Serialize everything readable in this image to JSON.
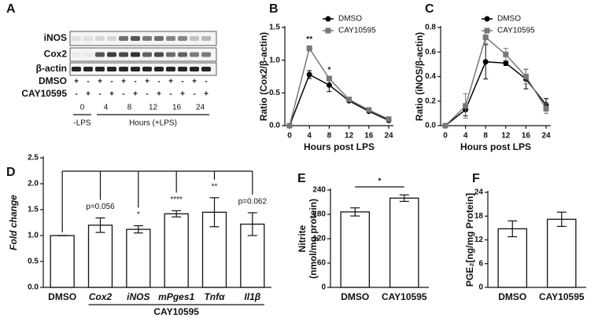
{
  "blot": {
    "panel": "A",
    "rows": [
      "iNOS",
      "Cox2",
      "β-actin"
    ],
    "treatments": [
      {
        "name": "DMSO",
        "marks": [
          "+",
          "-",
          "+",
          "-",
          "+",
          "-",
          "+",
          "-",
          "+",
          "-",
          "+",
          "-"
        ]
      },
      {
        "name": "CAY10595",
        "marks": [
          "-",
          "+",
          "-",
          "+",
          "-",
          "+",
          "-",
          "+",
          "-",
          "+",
          "-",
          "+"
        ]
      }
    ],
    "times": [
      "0",
      "4",
      "8",
      "12",
      "16",
      "24"
    ],
    "conditions": [
      "-LPS",
      "Hours (+LPS)"
    ]
  },
  "chart_data": [
    {
      "type": "line",
      "panel": "B",
      "ylabel": "Ratio (Cox2/β-actin)",
      "xlabel": "Hours post LPS",
      "categories": [
        "0",
        "4",
        "8",
        "12",
        "16",
        "24"
      ],
      "series": [
        {
          "name": "DMSO",
          "color": "#000000",
          "marker": "circle",
          "values": [
            0,
            0.78,
            0.62,
            0.38,
            0.22,
            0.08
          ],
          "errors": [
            0,
            0.06,
            0.1,
            0.02,
            0.02,
            0.02
          ]
        },
        {
          "name": "CAY10595",
          "color": "#777777",
          "marker": "square",
          "values": [
            0,
            1.18,
            0.72,
            0.4,
            0.24,
            0.1
          ],
          "errors": [
            0,
            0.04,
            0.03,
            0.02,
            0.02,
            0.02
          ]
        }
      ],
      "ylim": [
        0,
        1.5
      ],
      "yticks": [
        {
          "value": 0,
          "label": "0.0"
        },
        {
          "value": 0.5,
          "label": "0.5"
        },
        {
          "value": 1,
          "label": "1.0"
        },
        {
          "value": 1.5,
          "label": "1.5"
        }
      ],
      "annotations": [
        {
          "x": "4",
          "text": "**"
        },
        {
          "x": "8",
          "text": "*"
        }
      ]
    },
    {
      "type": "line",
      "panel": "C",
      "ylabel": "Ratio (iNOS/β-actin)",
      "xlabel": "Hours post LPS",
      "categories": [
        "0",
        "4",
        "8",
        "12",
        "16",
        "24"
      ],
      "series": [
        {
          "name": "DMSO",
          "color": "#000000",
          "marker": "circle",
          "values": [
            0,
            0.13,
            0.52,
            0.51,
            0.38,
            0.17
          ],
          "errors": [
            0,
            0.05,
            0.14,
            0.02,
            0.08,
            0.05
          ]
        },
        {
          "name": "CAY10595",
          "color": "#777777",
          "marker": "square",
          "values": [
            0,
            0.16,
            0.72,
            0.58,
            0.4,
            0.14
          ],
          "errors": [
            0,
            0.1,
            0.05,
            0.05,
            0.06,
            0.04
          ]
        }
      ],
      "ylim": [
        0,
        0.8
      ],
      "yticks": [
        {
          "value": 0,
          "label": "0.0"
        },
        {
          "value": 0.2,
          "label": "0.2"
        },
        {
          "value": 0.4,
          "label": "0.4"
        },
        {
          "value": 0.6,
          "label": "0.6"
        },
        {
          "value": 0.8,
          "label": "0.8"
        }
      ]
    },
    {
      "type": "bar",
      "panel": "D",
      "ylabel": "Fold change",
      "categories": [
        "DMSO",
        "Cox2",
        "iNOS",
        "mPges1",
        "Tnfα",
        "Il1β"
      ],
      "values": [
        1.0,
        1.2,
        1.12,
        1.42,
        1.45,
        1.22
      ],
      "errors": [
        0,
        0.14,
        0.07,
        0.06,
        0.28,
        0.22
      ],
      "color": "#ffffff",
      "group_label": "CAY10595",
      "ylim": [
        0,
        2.5
      ],
      "yticks": [
        {
          "value": 0,
          "label": "0.0"
        },
        {
          "value": 0.5,
          "label": "0.5"
        },
        {
          "value": 1,
          "label": "1.0"
        },
        {
          "value": 1.5,
          "label": "1.5"
        },
        {
          "value": 2,
          "label": "2.0"
        },
        {
          "value": 2.5,
          "label": "2.5"
        }
      ],
      "annotations": [
        {
          "x": "Cox2",
          "text": "p=0.056"
        },
        {
          "x": "iNOS",
          "text": "*"
        },
        {
          "x": "mPges1",
          "text": "****"
        },
        {
          "x": "Tnfα",
          "text": "**"
        },
        {
          "x": "Il1β",
          "text": "p=0.062"
        }
      ]
    },
    {
      "type": "bar",
      "panel": "E",
      "ylabel": [
        "Nitrite",
        "(nmol/mg protein)"
      ],
      "categories": [
        "DMSO",
        "CAY10595"
      ],
      "values": [
        186,
        220
      ],
      "errors": [
        10,
        8
      ],
      "color": "#ffffff",
      "ylim": [
        0,
        240
      ],
      "yticks": [
        0,
        60,
        120,
        180,
        240
      ],
      "annotations": [
        {
          "text": "*"
        }
      ]
    },
    {
      "type": "bar",
      "panel": "F",
      "ylabel": "PGE₂[ng/mg Protein]",
      "categories": [
        "DMSO",
        "CAY10595"
      ],
      "values": [
        14.8,
        17.2
      ],
      "errors": [
        2,
        1.8
      ],
      "color": "#ffffff",
      "ylim": [
        0,
        24
      ],
      "yticks": [
        0,
        6,
        12,
        18,
        24
      ]
    }
  ]
}
